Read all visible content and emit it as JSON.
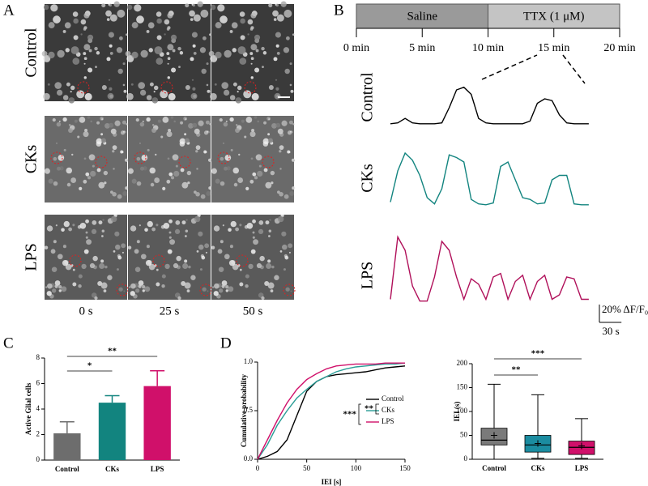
{
  "panel_a": {
    "letter": "A",
    "rows": [
      "Control",
      "CKs",
      "LPS"
    ],
    "times": [
      "0 s",
      "25 s",
      "50 s"
    ]
  },
  "panel_b": {
    "letter": "B",
    "timeline": {
      "segments": [
        {
          "label": "Saline",
          "start": 0,
          "end": 10
        },
        {
          "label": "TTX (1 μM)",
          "start": 10,
          "end": 20
        }
      ],
      "ticks": [
        {
          "value": 0,
          "label": "0 min"
        },
        {
          "value": 5,
          "label": "5 min"
        },
        {
          "value": 10,
          "label": "10 min"
        },
        {
          "value": 15,
          "label": "15 min"
        },
        {
          "value": 20,
          "label": "20 min"
        }
      ]
    },
    "scalebar": {
      "y": 20,
      "y_label": "20% ΔF/F₀",
      "x": 30,
      "x_label": "30 s"
    }
  },
  "panel_c": {
    "letter": "C"
  },
  "panel_d": {
    "letter": "D"
  },
  "chart_data": [
    {
      "type": "trace",
      "x": [
        0,
        10,
        20,
        30,
        40,
        50,
        60,
        70,
        80,
        90,
        100,
        110,
        120,
        130,
        140,
        150,
        160,
        170,
        180,
        190,
        200,
        210,
        220,
        230,
        240,
        250,
        260,
        270
      ],
      "series": [
        {
          "name": "Control",
          "color": "#000000",
          "values": [
            2,
            3,
            8,
            3,
            2,
            2,
            2,
            3,
            20,
            40,
            43,
            35,
            8,
            3,
            2,
            2,
            2,
            2,
            2,
            5,
            25,
            30,
            28,
            12,
            3,
            2,
            2,
            2
          ]
        },
        {
          "name": "CKs",
          "color": "#12847f",
          "values": [
            5,
            40,
            60,
            52,
            35,
            10,
            3,
            20,
            58,
            55,
            50,
            8,
            3,
            2,
            4,
            45,
            50,
            30,
            10,
            8,
            3,
            4,
            30,
            35,
            35,
            3,
            2,
            2
          ]
        },
        {
          "name": "LPS",
          "color": "#b0105a",
          "values": [
            5,
            75,
            60,
            20,
            3,
            3,
            30,
            70,
            60,
            30,
            5,
            28,
            22,
            5,
            30,
            34,
            5,
            25,
            32,
            5,
            25,
            32,
            5,
            10,
            30,
            28,
            5,
            5
          ]
        }
      ]
    },
    {
      "type": "bar",
      "y_label": "Active Glial cells",
      "categories": [
        "Control",
        "CKs",
        "LPS"
      ],
      "values": [
        2.1,
        4.5,
        5.8
      ],
      "errors": [
        0.9,
        0.55,
        1.2
      ],
      "colors": [
        "#6d6d6d",
        "#12847f",
        "#d0106a"
      ],
      "ylim": [
        0,
        8
      ],
      "yticks": [
        0,
        2,
        4,
        6,
        8
      ],
      "significance": [
        "*",
        "**"
      ]
    },
    {
      "type": "line",
      "x_label": "IEI [s]",
      "y_label": "Cumulative probability",
      "x": [
        0,
        10,
        20,
        30,
        40,
        50,
        60,
        70,
        80,
        90,
        100,
        110,
        120,
        130,
        140,
        150
      ],
      "series": [
        {
          "name": "Control",
          "color": "#000000",
          "values": [
            0,
            0.03,
            0.08,
            0.2,
            0.45,
            0.7,
            0.8,
            0.85,
            0.87,
            0.88,
            0.89,
            0.9,
            0.92,
            0.94,
            0.95,
            0.96
          ]
        },
        {
          "name": "CKs",
          "color": "#2a9d96",
          "values": [
            0,
            0.15,
            0.35,
            0.5,
            0.63,
            0.72,
            0.8,
            0.85,
            0.9,
            0.93,
            0.95,
            0.96,
            0.97,
            0.98,
            0.98,
            0.99
          ]
        },
        {
          "name": "LPS",
          "color": "#d0106a",
          "values": [
            0,
            0.2,
            0.4,
            0.58,
            0.72,
            0.82,
            0.88,
            0.93,
            0.96,
            0.97,
            0.98,
            0.98,
            0.98,
            0.99,
            0.99,
            0.99
          ]
        }
      ],
      "xlim": [
        0,
        150
      ],
      "xticks": [
        0,
        50,
        100,
        150
      ],
      "ylim": [
        0,
        1
      ],
      "yticks": [
        {
          "value": 0,
          "label": "0.0"
        },
        {
          "value": 0.5,
          "label": "0.5"
        },
        {
          "value": 1,
          "label": "1.0"
        }
      ],
      "legend": "right",
      "significance": [
        "***",
        "**"
      ]
    },
    {
      "type": "box",
      "y_label": "IEI (s)",
      "series": [
        {
          "name": "Control",
          "color": "#7a7a7a",
          "min": 0,
          "q1": 30,
          "median": 40,
          "q3": 65,
          "max": 157,
          "mean": 50
        },
        {
          "name": "CKs",
          "color": "#1b8ca0",
          "min": 2,
          "q1": 15,
          "median": 30,
          "q3": 50,
          "max": 135,
          "mean": 33
        },
        {
          "name": "LPS",
          "color": "#d0106a",
          "min": 2,
          "q1": 10,
          "median": 25,
          "q3": 38,
          "max": 85,
          "mean": 28
        }
      ],
      "ylim": [
        0,
        200
      ],
      "yticks": [
        0,
        50,
        100,
        150,
        200
      ],
      "significance": [
        "**",
        "***"
      ]
    }
  ]
}
